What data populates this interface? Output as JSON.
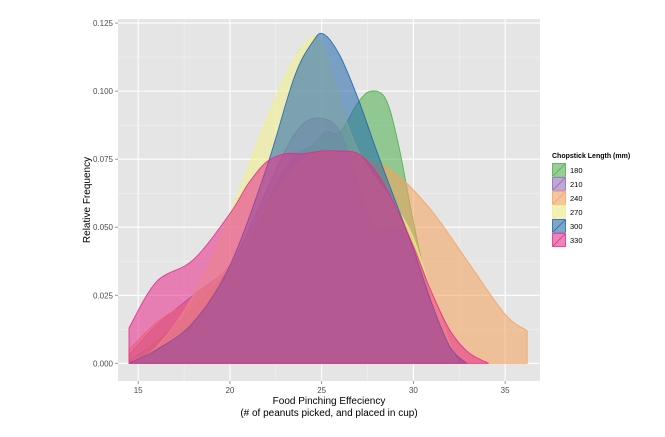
{
  "chart_data": {
    "type": "area",
    "subtype": "density",
    "xlabel_line1": "Food Pinching Effeciency",
    "xlabel_line2": "(# of peanuts picked, and placed in cup)",
    "ylabel": "Relative Frequency",
    "xlim": [
      13.9,
      36.9
    ],
    "ylim": [
      -0.0065,
      0.1265
    ],
    "x_ticks": [
      15,
      20,
      25,
      30,
      35
    ],
    "x_tick_labels": [
      "15",
      "20",
      "25",
      "30",
      "35"
    ],
    "y_ticks": [
      0,
      0.025,
      0.05,
      0.075,
      0.1,
      0.125
    ],
    "y_tick_labels": [
      "0.000",
      "0.025",
      "0.050",
      "0.075",
      "0.100",
      "0.125"
    ],
    "grid": true,
    "legend_position": "right",
    "legend_title": "Chopstick Length (mm)",
    "fill_opacity": 0.55,
    "panel_background": "#e5e5e5",
    "grid_color": "#ffffff",
    "series": [
      {
        "name": "180",
        "color": "#4daf4a",
        "x": [
          14.5,
          16,
          18,
          20,
          21.5,
          22.5,
          23.5,
          24.5,
          25.2,
          26,
          27,
          27.7,
          28.5,
          29.2,
          30,
          31,
          32,
          32.9
        ],
        "y": [
          0.001,
          0.008,
          0.02,
          0.035,
          0.05,
          0.065,
          0.076,
          0.08,
          0.085,
          0.085,
          0.096,
          0.1,
          0.097,
          0.08,
          0.052,
          0.022,
          0.006,
          0.0
        ]
      },
      {
        "name": "210",
        "color": "#9467bd",
        "x": [
          14.5,
          16,
          18,
          20,
          21.5,
          23,
          24,
          25,
          26,
          27,
          27.8,
          28.6,
          29.5,
          30.5,
          31.5,
          32.4
        ],
        "y": [
          0.003,
          0.014,
          0.025,
          0.036,
          0.056,
          0.078,
          0.088,
          0.09,
          0.085,
          0.065,
          0.05,
          0.049,
          0.048,
          0.03,
          0.012,
          0.0
        ]
      },
      {
        "name": "240",
        "color": "#f5a35c",
        "x": [
          14.5,
          16,
          18,
          20,
          22,
          24,
          26,
          27.5,
          29,
          31,
          33,
          35,
          36.2
        ],
        "y": [
          0.005,
          0.015,
          0.024,
          0.036,
          0.058,
          0.075,
          0.078,
          0.075,
          0.07,
          0.056,
          0.037,
          0.018,
          0.012
        ]
      },
      {
        "name": "270",
        "color": "#f0f08a",
        "x": [
          14.5,
          16,
          18,
          20,
          22,
          23.5,
          24.5,
          25,
          25.5,
          26.5,
          27.5,
          29,
          30,
          31,
          32.4
        ],
        "y": [
          0.0,
          0.006,
          0.025,
          0.055,
          0.09,
          0.112,
          0.12,
          0.118,
          0.108,
          0.086,
          0.072,
          0.058,
          0.046,
          0.026,
          0.0
        ]
      },
      {
        "name": "300",
        "color": "#2166ac",
        "x": [
          14.5,
          16,
          18,
          20,
          22,
          23.5,
          24.5,
          25.1,
          26,
          27,
          28,
          29,
          30,
          31,
          32,
          32.9
        ],
        "y": [
          0.0,
          0.005,
          0.015,
          0.036,
          0.072,
          0.105,
          0.118,
          0.121,
          0.113,
          0.097,
          0.078,
          0.06,
          0.042,
          0.022,
          0.006,
          0.0
        ]
      },
      {
        "name": "330",
        "color": "#e7298a",
        "x": [
          14.5,
          16,
          18,
          20,
          21,
          22,
          23,
          24,
          25,
          26,
          27,
          28,
          29,
          30,
          31,
          32,
          33,
          34.1
        ],
        "y": [
          0.013,
          0.03,
          0.038,
          0.055,
          0.066,
          0.074,
          0.077,
          0.077,
          0.078,
          0.078,
          0.077,
          0.07,
          0.058,
          0.043,
          0.026,
          0.012,
          0.004,
          0.0
        ]
      }
    ]
  }
}
